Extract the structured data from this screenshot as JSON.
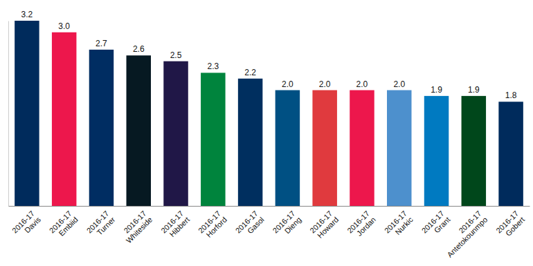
{
  "chart_data": {
    "type": "bar",
    "categories": [
      "2016-17\nDavis",
      "2016-17\nEmbiid",
      "2016-17\nTurner",
      "2016-17\nWhiteside",
      "2016-17\nHibbert",
      "2016-17\nHorford",
      "2016-17\nGasol",
      "2016-17\nDieng",
      "2016-17\nHoward",
      "2016-17\nJordan",
      "2016-17\nNurkic",
      "2016-17\nGrant",
      "2016-17\nAntetokounmpo",
      "2016-17\nGobert"
    ],
    "values": [
      3.2,
      3.0,
      2.7,
      2.6,
      2.5,
      2.3,
      2.2,
      2.0,
      2.0,
      2.0,
      2.0,
      1.9,
      1.9,
      1.8
    ],
    "value_labels": [
      "3.2",
      "3.0",
      "2.7",
      "2.6",
      "2.5",
      "2.3",
      "2.2",
      "2.0",
      "2.0",
      "2.0",
      "2.0",
      "1.9",
      "1.9",
      "1.8"
    ],
    "colors": [
      "#002b5c",
      "#ed174c",
      "#002d62",
      "#061922",
      "#201747",
      "#00843d",
      "#002f5f",
      "#005083",
      "#e03a3e",
      "#ed174c",
      "#4d90cd",
      "#007ac1",
      "#00471b",
      "#002b5c"
    ],
    "ylim": [
      0,
      3.2
    ],
    "data_labels": true,
    "tick_labels": "x",
    "grid": false
  }
}
